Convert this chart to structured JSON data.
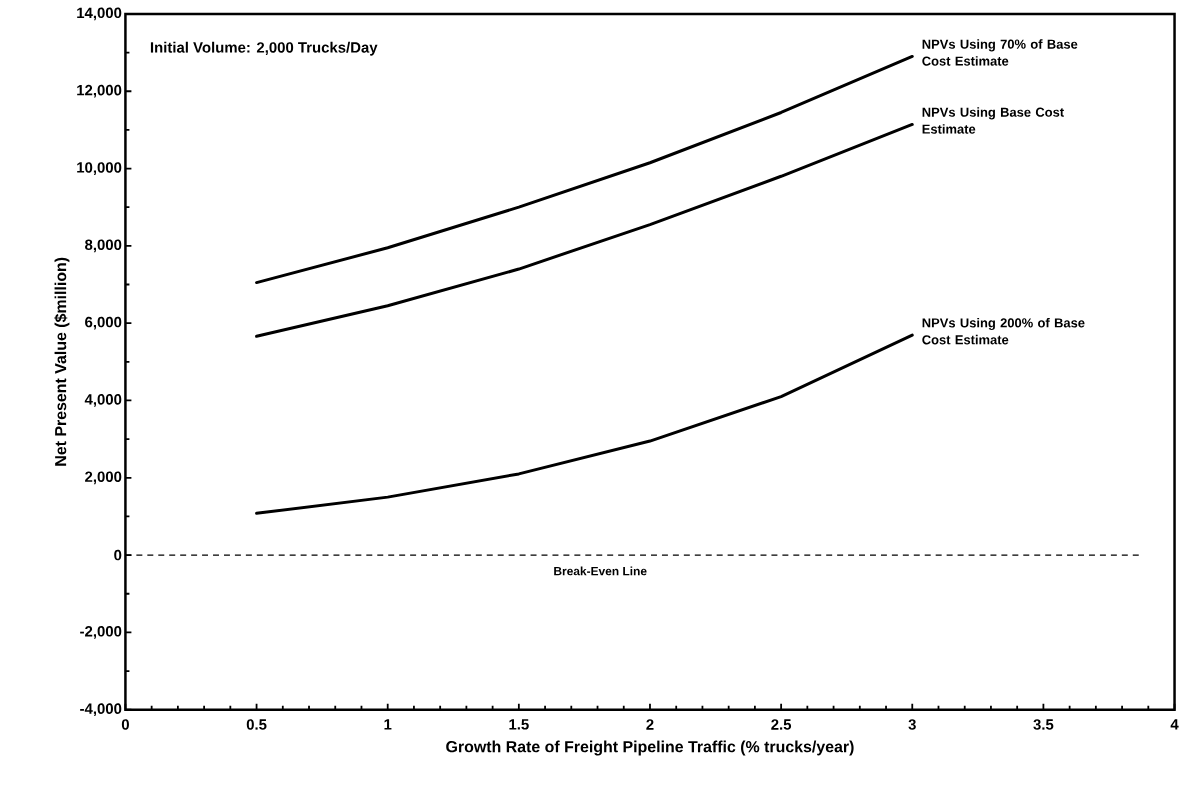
{
  "chart_data": {
    "type": "line",
    "xlabel": "Growth Rate of Freight Pipeline Traffic (% trucks/year)",
    "ylabel": "Net Present Value ($million)",
    "x": [
      0.5,
      1,
      1.5,
      2,
      2.5,
      3
    ],
    "series": [
      {
        "name": "NPVs Using 70% of Base Cost Estimate",
        "color": "#000000",
        "values": [
          7050,
          7950,
          9000,
          10150,
          11450,
          12900
        ]
      },
      {
        "name": "NPVs Using Base Cost Estimate",
        "color": "#000000",
        "values": [
          5660,
          6450,
          7400,
          8550,
          9800,
          11140
        ]
      },
      {
        "name": "NPVs Using 200% of Base Cost Estimate",
        "color": "#000000",
        "values": [
          1080,
          1500,
          2100,
          2950,
          4100,
          5690
        ]
      }
    ],
    "xlim": [
      0,
      4
    ],
    "ylim": [
      -4000,
      14000
    ],
    "xticks": [
      0,
      0.5,
      1,
      1.5,
      2,
      2.5,
      3,
      3.5,
      4
    ],
    "yticks": [
      {
        "value": -4000,
        "label": "-4,000"
      },
      {
        "value": -2000,
        "label": "-2,000"
      },
      {
        "value": 0,
        "label": "0"
      },
      {
        "value": 2000,
        "label": "2,000"
      },
      {
        "value": 4000,
        "label": "4,000"
      },
      {
        "value": 6000,
        "label": "6,000"
      },
      {
        "value": 8000,
        "label": "8,000"
      },
      {
        "value": 10000,
        "label": "10,000"
      },
      {
        "value": 12000,
        "label": "12,000"
      },
      {
        "value": 14000,
        "label": "14,000"
      }
    ],
    "ref_lines": [
      {
        "axis": "y",
        "value": 0,
        "label": "Break-Even Line",
        "line_style": "dashed",
        "color": "#000000"
      }
    ],
    "annotations": [
      "Initial Volume: 2,000 Trucks/Day"
    ]
  }
}
